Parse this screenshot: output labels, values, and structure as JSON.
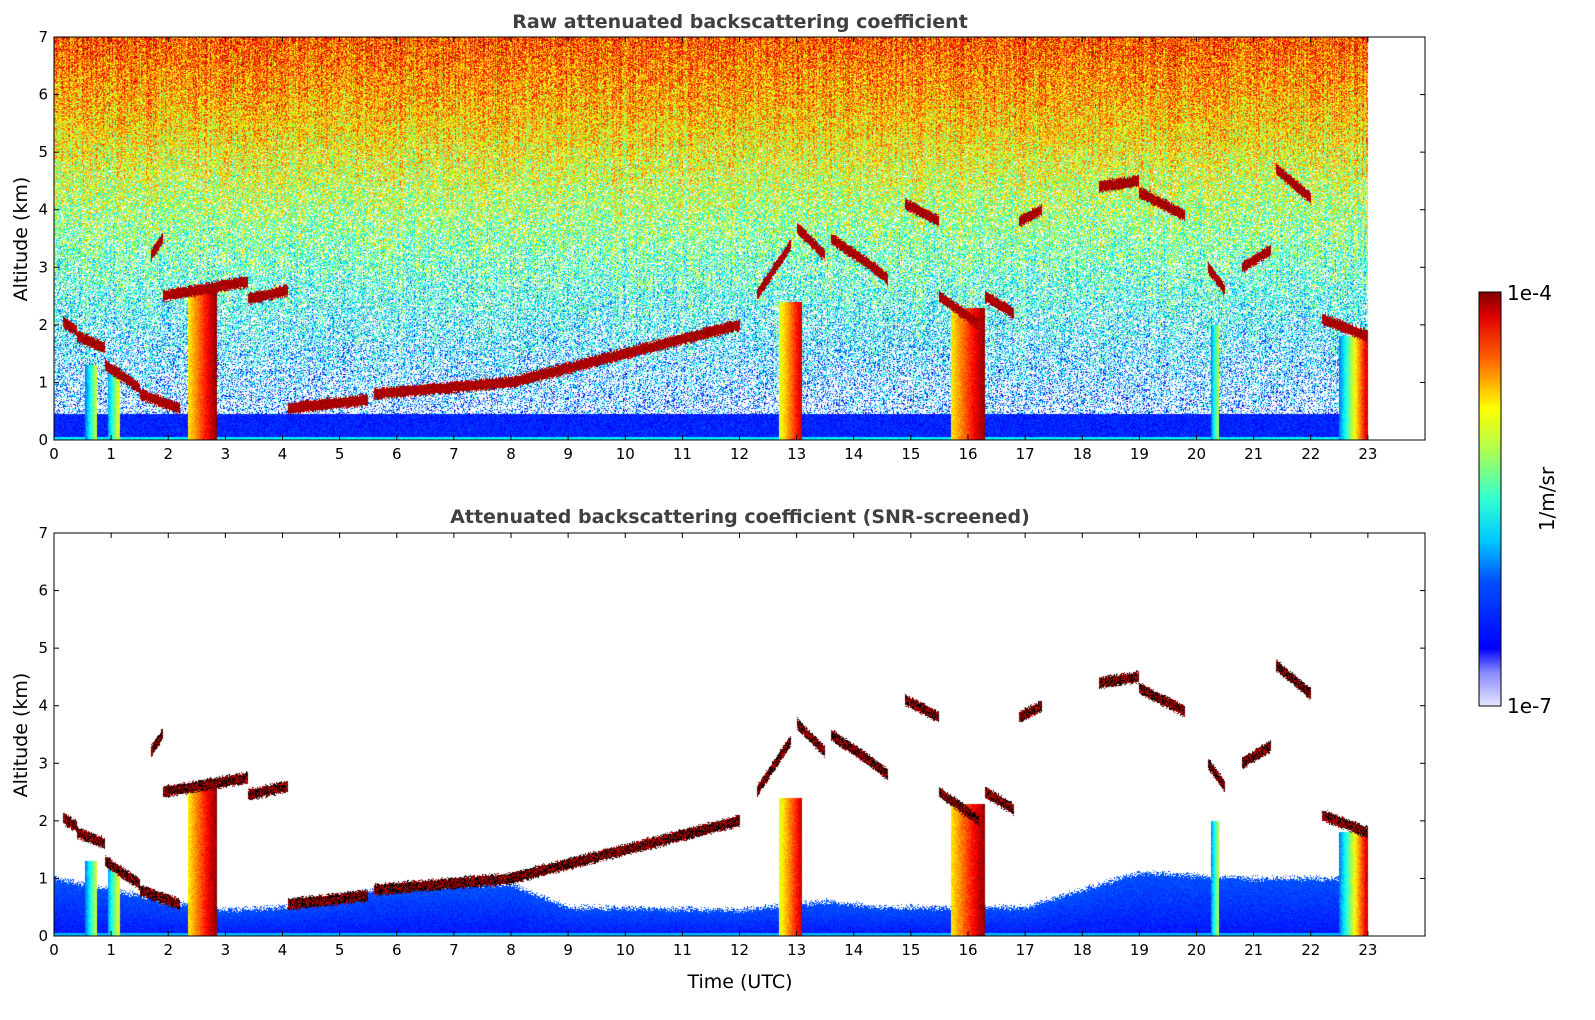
{
  "chart_data": [
    {
      "type": "heatmap",
      "title": "Raw attenuated backscattering coefficient",
      "ylabel": "Altitude (km)",
      "xlabel": "",
      "xlim": [
        0,
        24
      ],
      "ylim": [
        0,
        7
      ],
      "x_ticks": [
        "0",
        "1",
        "2",
        "3",
        "4",
        "5",
        "6",
        "7",
        "8",
        "9",
        "10",
        "11",
        "12",
        "13",
        "14",
        "15",
        "16",
        "17",
        "18",
        "19",
        "20",
        "21",
        "22",
        "23"
      ],
      "y_ticks": [
        "0",
        "1",
        "2",
        "3",
        "4",
        "5",
        "6",
        "7"
      ],
      "data_end_time": 23,
      "noise": "high",
      "cloud_layers": [
        {
          "t0": 0.15,
          "t1": 0.4,
          "alt0": 2.05,
          "alt1": 1.9
        },
        {
          "t0": 0.4,
          "t1": 0.9,
          "alt0": 1.8,
          "alt1": 1.6
        },
        {
          "t0": 0.9,
          "t1": 1.5,
          "alt0": 1.3,
          "alt1": 0.9
        },
        {
          "t0": 1.5,
          "t1": 2.2,
          "alt0": 0.8,
          "alt1": 0.55
        },
        {
          "t0": 1.7,
          "t1": 1.9,
          "alt0": 3.2,
          "alt1": 3.5
        },
        {
          "t0": 1.9,
          "t1": 3.4,
          "alt0": 2.5,
          "alt1": 2.75
        },
        {
          "t0": 3.4,
          "t1": 4.1,
          "alt0": 2.45,
          "alt1": 2.6
        },
        {
          "t0": 4.1,
          "t1": 5.5,
          "alt0": 0.55,
          "alt1": 0.7
        },
        {
          "t0": 5.6,
          "t1": 8.0,
          "alt0": 0.8,
          "alt1": 1.0
        },
        {
          "t0": 8.0,
          "t1": 10.0,
          "alt0": 1.0,
          "alt1": 1.5
        },
        {
          "t0": 10.0,
          "t1": 12.0,
          "alt0": 1.5,
          "alt1": 2.0
        },
        {
          "t0": 12.3,
          "t1": 12.9,
          "alt0": 2.5,
          "alt1": 3.4
        },
        {
          "t0": 13.0,
          "t1": 13.5,
          "alt0": 3.7,
          "alt1": 3.2
        },
        {
          "t0": 13.6,
          "t1": 14.2,
          "alt0": 3.5,
          "alt1": 3.1
        },
        {
          "t0": 14.2,
          "t1": 14.6,
          "alt0": 3.1,
          "alt1": 2.8
        },
        {
          "t0": 14.9,
          "t1": 15.5,
          "alt0": 4.1,
          "alt1": 3.8
        },
        {
          "t0": 15.5,
          "t1": 16.2,
          "alt0": 2.5,
          "alt1": 2.0
        },
        {
          "t0": 16.3,
          "t1": 16.8,
          "alt0": 2.5,
          "alt1": 2.2
        },
        {
          "t0": 16.9,
          "t1": 17.3,
          "alt0": 3.8,
          "alt1": 4.0
        },
        {
          "t0": 18.3,
          "t1": 19.0,
          "alt0": 4.4,
          "alt1": 4.5
        },
        {
          "t0": 19.0,
          "t1": 19.8,
          "alt0": 4.3,
          "alt1": 3.9
        },
        {
          "t0": 20.2,
          "t1": 20.5,
          "alt0": 3.0,
          "alt1": 2.6
        },
        {
          "t0": 20.8,
          "t1": 21.3,
          "alt0": 3.0,
          "alt1": 3.3
        },
        {
          "t0": 21.4,
          "t1": 22.0,
          "alt0": 4.7,
          "alt1": 4.2
        },
        {
          "t0": 22.2,
          "t1": 23.0,
          "alt0": 2.1,
          "alt1": 1.8
        }
      ],
      "precip_columns": [
        {
          "t0": 0.55,
          "t1": 0.75,
          "top": 1.3,
          "strength": 0.45
        },
        {
          "t0": 0.95,
          "t1": 1.15,
          "top": 1.2,
          "strength": 0.5
        },
        {
          "t0": 2.35,
          "t1": 2.85,
          "top": 2.6,
          "strength": 0.85
        },
        {
          "t0": 12.7,
          "t1": 13.1,
          "top": 2.4,
          "strength": 0.8
        },
        {
          "t0": 15.7,
          "t1": 16.3,
          "top": 2.3,
          "strength": 0.85
        },
        {
          "t0": 20.25,
          "t1": 20.4,
          "top": 2.0,
          "strength": 0.45
        },
        {
          "t0": 22.5,
          "t1": 22.75,
          "top": 1.8,
          "strength": 0.45
        },
        {
          "t0": 22.75,
          "t1": 23.0,
          "top": 1.8,
          "strength": 0.8
        }
      ]
    },
    {
      "type": "heatmap",
      "title": "Attenuated backscattering coefficient (SNR-screened)",
      "ylabel": "Altitude (km)",
      "xlabel": "Time (UTC)",
      "xlim": [
        0,
        24
      ],
      "ylim": [
        0,
        7
      ],
      "x_ticks": [
        "0",
        "1",
        "2",
        "3",
        "4",
        "5",
        "6",
        "7",
        "8",
        "9",
        "10",
        "11",
        "12",
        "13",
        "14",
        "15",
        "16",
        "17",
        "18",
        "19",
        "20",
        "21",
        "22",
        "23"
      ],
      "y_ticks": [
        "0",
        "1",
        "2",
        "3",
        "4",
        "5",
        "6",
        "7"
      ],
      "data_end_time": 23,
      "noise": "screened",
      "boundary_layer_top": [
        [
          0.0,
          1.0
        ],
        [
          2.0,
          0.6
        ],
        [
          3.0,
          0.45
        ],
        [
          4.0,
          0.5
        ],
        [
          5.0,
          0.7
        ],
        [
          6.0,
          0.85
        ],
        [
          8.0,
          0.9
        ],
        [
          9.0,
          0.5
        ],
        [
          12.0,
          0.45
        ],
        [
          13.5,
          0.6
        ],
        [
          14.5,
          0.5
        ],
        [
          17.0,
          0.5
        ],
        [
          18.0,
          0.8
        ],
        [
          19.0,
          1.1
        ],
        [
          21.0,
          1.0
        ],
        [
          23.0,
          1.0
        ]
      ]
    }
  ],
  "colorbar": {
    "label": "1/m/sr",
    "min_label": "1e-7",
    "max_label": "1e-4",
    "scale": "log",
    "colormap": "jet"
  }
}
